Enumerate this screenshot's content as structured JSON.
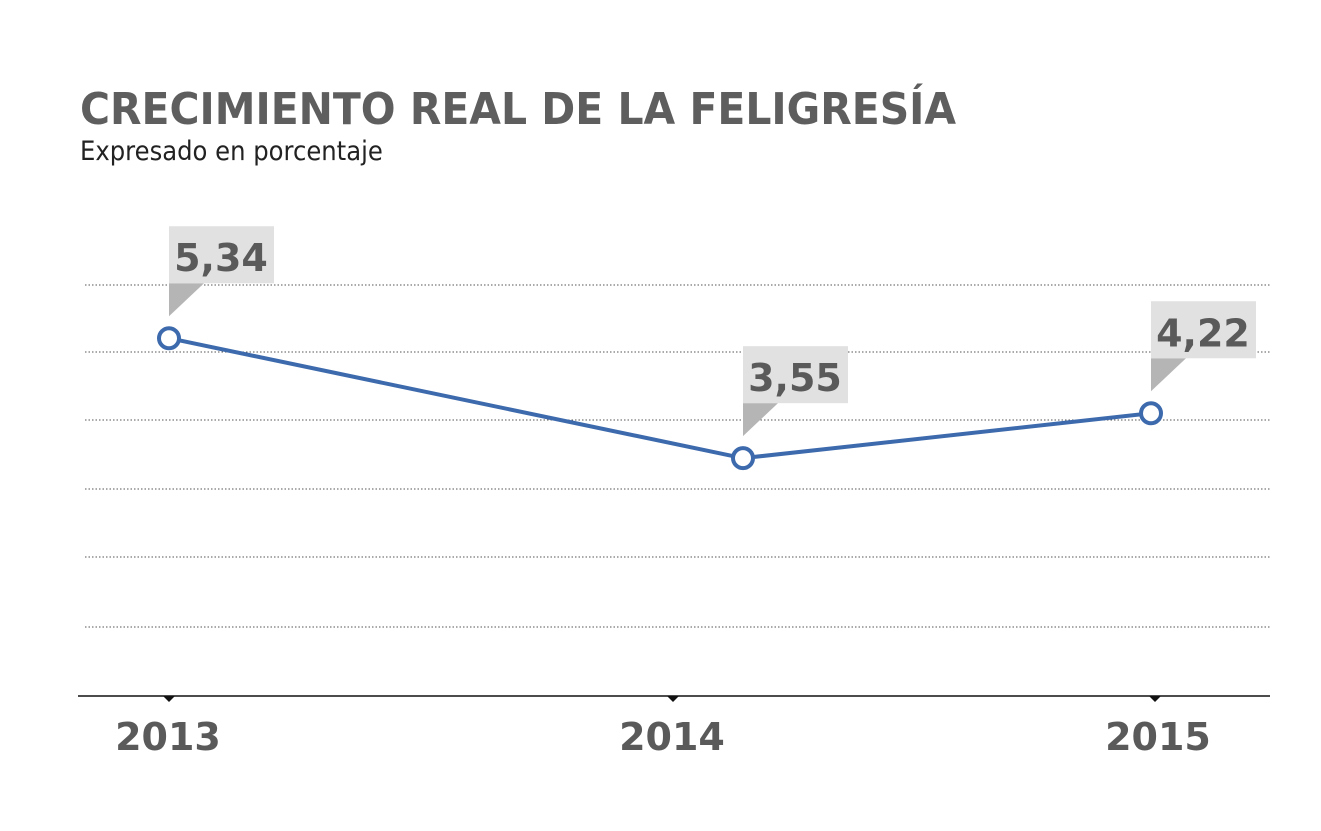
{
  "chart_data": {
    "type": "line",
    "title": "CRECIMIENTO REAL DE LA FELIGRESÍA",
    "subtitle": "Expresado en porcentaje",
    "categories": [
      "2013",
      "2014",
      "2015"
    ],
    "values": [
      5.34,
      3.55,
      4.22
    ],
    "data_labels": [
      "5,34",
      "3,55",
      "4,22"
    ],
    "ylim": [
      0,
      6
    ],
    "grid": true,
    "colors": {
      "line": "#3d6aad",
      "label_box": "#e1e1e1",
      "label_pointer": "#b5b5b5",
      "text": "#5a5a5a"
    }
  }
}
